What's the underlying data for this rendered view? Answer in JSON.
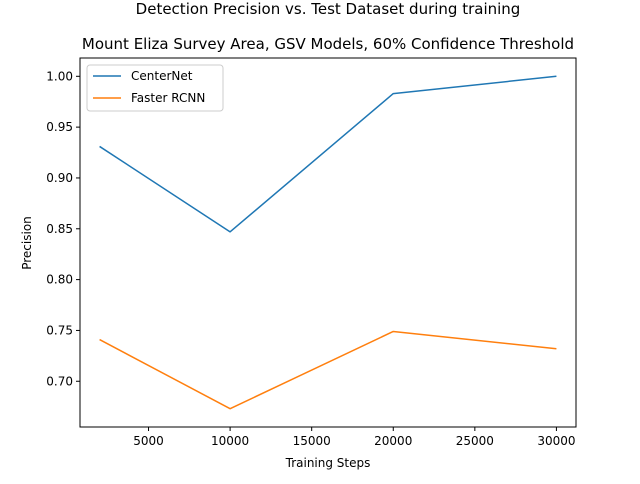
{
  "figure": {
    "suptitle": "Detection Precision vs. Test Dataset during training",
    "title": "Mount Eliza Survey Area, GSV Models, 60% Confidence Threshold"
  },
  "chart_data": {
    "type": "line",
    "title": "Mount Eliza Survey Area, GSV Models, 60% Confidence Threshold",
    "suptitle": "Detection Precision vs. Test Dataset during training",
    "xlabel": "Training Steps",
    "ylabel": "Precision",
    "xlim": [
      800,
      31200
    ],
    "ylim": [
      0.655,
      1.018
    ],
    "xticks": [
      5000,
      10000,
      15000,
      20000,
      25000,
      30000
    ],
    "xtick_labels": [
      "5000",
      "10000",
      "15000",
      "20000",
      "25000",
      "30000"
    ],
    "yticks": [
      0.7,
      0.75,
      0.8,
      0.85,
      0.9,
      0.95,
      1.0
    ],
    "ytick_labels": [
      "0.70",
      "0.75",
      "0.80",
      "0.85",
      "0.90",
      "0.95",
      "1.00"
    ],
    "grid": false,
    "legend_position": "top-left",
    "x": [
      2000,
      10000,
      20000,
      30000
    ],
    "series": [
      {
        "name": "CenterNet",
        "color": "#1f77b4",
        "values": [
          0.931,
          0.847,
          0.983,
          1.0
        ]
      },
      {
        "name": "Faster RCNN",
        "color": "#ff7f0e",
        "values": [
          0.741,
          0.673,
          0.749,
          0.732
        ]
      }
    ]
  }
}
